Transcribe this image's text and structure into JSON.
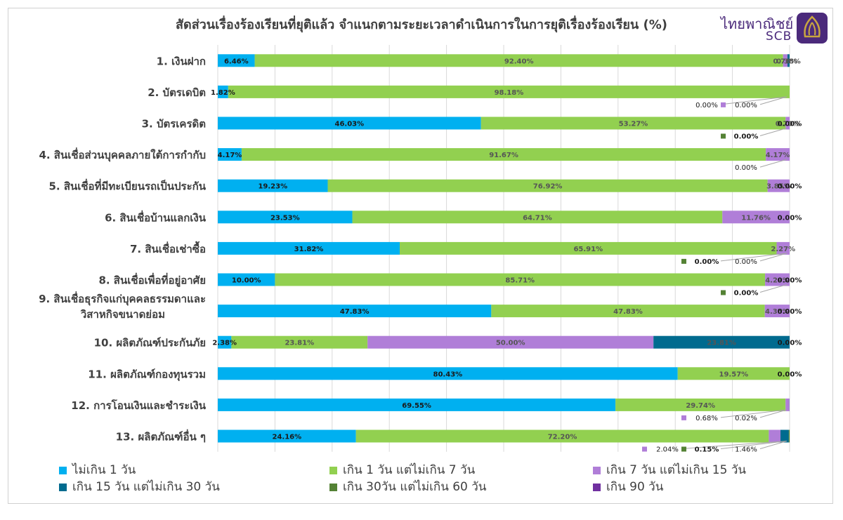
{
  "title": "สัดส่วนเรื่องร้องเรียนที่ยุติแล้ว จำแนกตามระยะเวลาดำเนินการในการยุติเรื่องร้องเรียน (%)",
  "logo": {
    "thai": "ไทยพาณิชย์",
    "en": "SCB"
  },
  "chart_data": {
    "type": "bar",
    "orientation": "horizontal",
    "stacked": true,
    "xlim": [
      0,
      100
    ],
    "grid": true,
    "legend_position": "bottom",
    "categories": [
      "1. เงินฝาก",
      "2. บัตรเดบิต",
      "3. บัตรเครดิต",
      "4. สินเชื่อส่วนบุคคลภายใต้การกำกับ",
      "5. สินเชื่อที่มีทะเบียนรถเป็นประกัน",
      "6. สินเชื่อบ้านแลกเงิน",
      "7. สินเชื่อเช่าซื้อ",
      "8. สินเชื่อเพื่อที่อยู่อาศัย",
      "9. สินเชื่อธุรกิจแก่บุคคลธรรมดาและวิสาหกิจขนาดย่อม",
      "10. ผลิตภัณฑ์ประกันภัย",
      "11. ผลิตภัณฑ์กองทุนรวม",
      "12. การโอนเงินและชำระเงิน",
      "13. ผลิตภัณฑ์อื่น ๆ"
    ],
    "category_lines": [
      [
        "1. เงินฝาก"
      ],
      [
        "2. บัตรเดบิต"
      ],
      [
        "3. บัตรเครดิต"
      ],
      [
        "4. สินเชื่อส่วนบุคคลภายใต้การกำกับ"
      ],
      [
        "5. สินเชื่อที่มีทะเบียนรถเป็นประกัน"
      ],
      [
        "6. สินเชื่อบ้านแลกเงิน"
      ],
      [
        "7. สินเชื่อเช่าซื้อ"
      ],
      [
        "8. สินเชื่อเพื่อที่อยู่อาศัย"
      ],
      [
        "9. สินเชื่อธุรกิจแก่บุคคลธรรมดาและ",
        "วิสาหกิจขนาดย่อม"
      ],
      [
        "10. ผลิตภัณฑ์ประกันภัย"
      ],
      [
        "11. ผลิตภัณฑ์กองทุนรวม"
      ],
      [
        "12. การโอนเงินและชำระเงิน"
      ],
      [
        "13. ผลิตภัณฑ์อื่น ๆ"
      ]
    ],
    "series": [
      {
        "name": "ไม่เกิน 1 วัน",
        "color": "#00b0f0",
        "values": [
          6.46,
          1.82,
          46.03,
          4.17,
          19.23,
          23.53,
          31.82,
          10.0,
          47.83,
          2.38,
          80.43,
          69.55,
          24.16
        ],
        "labels": [
          "6.46%",
          "1.82%",
          "46.03%",
          "4.17%",
          "19.23%",
          "23.53%",
          "31.82%",
          "10.00%",
          "47.83%",
          "2.38%",
          "80.43%",
          "69.55%",
          "24.16%"
        ]
      },
      {
        "name": "เกิน 1 วัน แต่ไม่เกิน 7 วัน",
        "color": "#92d050",
        "values": [
          92.4,
          98.18,
          53.27,
          91.67,
          76.92,
          64.71,
          65.91,
          85.71,
          47.83,
          23.81,
          19.57,
          29.74,
          72.2
        ],
        "labels": [
          "92.40%",
          "98.18%",
          "53.27%",
          "91.67%",
          "76.92%",
          "64.71%",
          "65.91%",
          "85.71%",
          "47.83%",
          "23.81%",
          "19.57%",
          "29.74%",
          "72.20%"
        ]
      },
      {
        "name": "เกิน 7 วัน แต่ไม่เกิน 15 วัน",
        "color": "#b07ed8",
        "values": [
          0.76,
          0,
          0.7,
          4.17,
          3.85,
          11.76,
          2.27,
          4.29,
          4.35,
          50.0,
          0,
          0.68,
          2.04
        ],
        "labels": [
          "0.76%",
          "",
          "0.70%",
          "4.17%",
          "3.85%",
          "11.76%",
          "2.27%",
          "4.29%",
          "4.35%",
          "50.00%",
          "",
          "",
          ""
        ]
      },
      {
        "name": "เกิน 15 วัน แต่ไม่เกิน 30 วัน",
        "color": "#006b8f",
        "values": [
          0.38,
          0,
          0,
          0,
          0,
          0,
          0,
          0,
          0,
          23.81,
          0,
          0.02,
          1.46
        ],
        "labels": [
          "0.38%",
          "",
          "",
          "",
          "",
          "",
          "",
          "",
          "",
          "23.81%",
          "",
          "",
          ""
        ]
      },
      {
        "name": "เกิน 30วัน แต่ไม่เกิน 60 วัน",
        "color": "#548235",
        "values": [
          0,
          0,
          0,
          0,
          0,
          0,
          0,
          0,
          0,
          0,
          0,
          0,
          0.15
        ],
        "labels": [
          "",
          "",
          "",
          "",
          "",
          "",
          "",
          "",
          "",
          "",
          "",
          "",
          ""
        ]
      },
      {
        "name": "เกิน 90 วัน",
        "color": "#7030a0",
        "values": [
          0,
          0,
          0,
          0,
          0,
          0,
          0,
          0,
          0,
          0,
          0,
          0,
          0
        ],
        "labels": [
          "",
          "",
          "",
          "",
          "",
          "",
          "",
          "",
          "",
          "",
          "",
          "",
          ""
        ]
      }
    ],
    "end_labels": [
      "",
      "",
      "0.00%",
      "",
      "0.00%",
      "0.00%",
      "",
      "0.00%",
      "0.00%",
      "0.00%",
      "0.00%",
      "",
      ""
    ],
    "callouts": [
      {
        "row": 1,
        "items": [
          {
            "text": "0.00%",
            "marker": ""
          },
          {
            "text": "0.00%",
            "marker": "#b07ed8"
          }
        ]
      },
      {
        "row": 2,
        "items": [
          {
            "text": "0.00%",
            "marker": "#548235"
          }
        ]
      },
      {
        "row": 3,
        "items": [
          {
            "text": "0.00%",
            "marker": ""
          }
        ]
      },
      {
        "row": 6,
        "items": [
          {
            "text": "0.00%",
            "marker": "#548235"
          },
          {
            "text": "0.00%",
            "marker": ""
          }
        ]
      },
      {
        "row": 7,
        "items": [
          {
            "text": "0.00%",
            "marker": "#548235"
          }
        ]
      },
      {
        "row": 11,
        "items": [
          {
            "text": "0.68%",
            "marker": "#b07ed8"
          },
          {
            "text": "0.02%",
            "marker": ""
          }
        ]
      },
      {
        "row": 12,
        "items": [
          {
            "text": "2.04%",
            "marker": "#b07ed8"
          },
          {
            "text": "0.15%",
            "marker": "#548235"
          },
          {
            "text": "1.46%",
            "marker": ""
          }
        ]
      }
    ]
  }
}
